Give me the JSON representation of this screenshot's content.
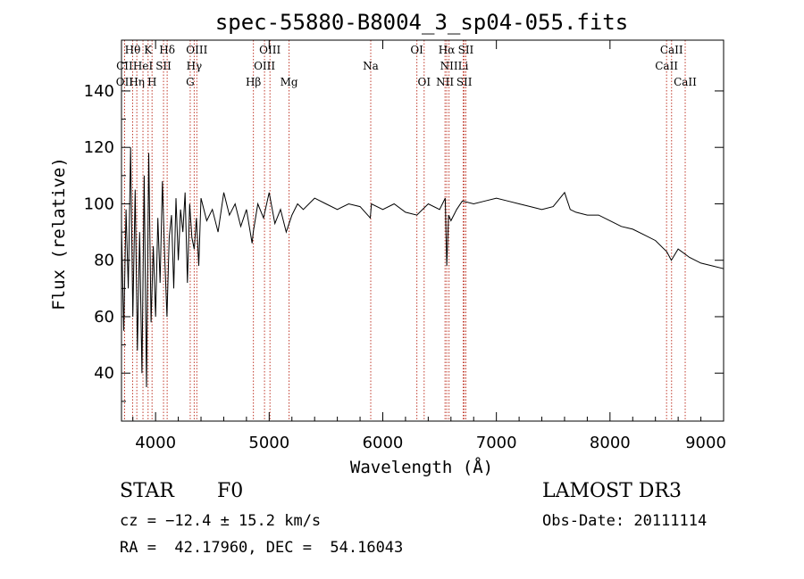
{
  "chart_data": {
    "type": "line",
    "title": "spec-55880-B8004_3_sp04-055.fits",
    "xlabel": "Wavelength (Å)",
    "ylabel": "Flux (relative)",
    "xlim": [
      3700,
      9000
    ],
    "ylim": [
      23,
      158
    ],
    "xticks": [
      4000,
      5000,
      6000,
      7000,
      8000,
      9000
    ],
    "yticks": [
      40,
      60,
      80,
      100,
      120,
      140
    ],
    "series": [
      {
        "name": "flux",
        "x": [
          3700,
          3720,
          3740,
          3760,
          3780,
          3800,
          3820,
          3840,
          3860,
          3880,
          3900,
          3920,
          3940,
          3960,
          3980,
          4000,
          4020,
          4040,
          4060,
          4080,
          4100,
          4120,
          4140,
          4160,
          4180,
          4200,
          4220,
          4240,
          4260,
          4280,
          4300,
          4320,
          4340,
          4360,
          4380,
          4400,
          4450,
          4500,
          4550,
          4600,
          4650,
          4700,
          4750,
          4800,
          4850,
          4860,
          4900,
          4950,
          5000,
          5050,
          5100,
          5150,
          5200,
          5250,
          5300,
          5400,
          5500,
          5600,
          5700,
          5800,
          5890,
          5900,
          6000,
          6100,
          6200,
          6300,
          6400,
          6500,
          6550,
          6563,
          6580,
          6600,
          6650,
          6700,
          6800,
          6900,
          7000,
          7100,
          7200,
          7300,
          7400,
          7500,
          7600,
          7650,
          7700,
          7800,
          7900,
          8000,
          8100,
          8200,
          8300,
          8400,
          8500,
          8540,
          8600,
          8700,
          8800,
          8900,
          9000
        ],
        "values": [
          92,
          55,
          98,
          70,
          120,
          60,
          105,
          48,
          90,
          40,
          110,
          35,
          118,
          58,
          85,
          60,
          95,
          72,
          108,
          82,
          60,
          88,
          96,
          70,
          102,
          80,
          98,
          90,
          104,
          72,
          100,
          88,
          84,
          95,
          78,
          102,
          94,
          98,
          90,
          104,
          96,
          100,
          92,
          98,
          86,
          90,
          100,
          95,
          104,
          93,
          98,
          90,
          96,
          100,
          98,
          102,
          100,
          98,
          100,
          99,
          95,
          100,
          98,
          100,
          97,
          96,
          100,
          98,
          102,
          78,
          96,
          94,
          98,
          101,
          100,
          101,
          102,
          101,
          100,
          99,
          98,
          99,
          104,
          98,
          97,
          96,
          96,
          94,
          92,
          91,
          89,
          87,
          83,
          80,
          84,
          81,
          79,
          78,
          77
        ]
      }
    ],
    "annotations": [
      {
        "label": "Hθ",
        "wavelength": 3798,
        "row": 1
      },
      {
        "label": "CII",
        "wavelength": 3727,
        "row": 2
      },
      {
        "label": "OII",
        "wavelength": 3727,
        "row": 3
      },
      {
        "label": "K",
        "wavelength": 3934,
        "row": 1
      },
      {
        "label": "HeI",
        "wavelength": 3889,
        "row": 2
      },
      {
        "label": "Hη",
        "wavelength": 3835,
        "row": 3
      },
      {
        "label": "Hδ",
        "wavelength": 4102,
        "row": 1
      },
      {
        "label": "SII",
        "wavelength": 4070,
        "row": 2
      },
      {
        "label": "H",
        "wavelength": 3969,
        "row": 3
      },
      {
        "label": "OIII",
        "wavelength": 4363,
        "row": 1
      },
      {
        "label": "Hγ",
        "wavelength": 4340,
        "row": 2
      },
      {
        "label": "G",
        "wavelength": 4305,
        "row": 3
      },
      {
        "label": "OIII",
        "wavelength": 5007,
        "row": 1
      },
      {
        "label": "OIII",
        "wavelength": 4959,
        "row": 2
      },
      {
        "label": "Hβ",
        "wavelength": 4861,
        "row": 3
      },
      {
        "label": "Mg",
        "wavelength": 5175,
        "row": 3
      },
      {
        "label": "Na",
        "wavelength": 5894,
        "row": 2
      },
      {
        "label": "OI",
        "wavelength": 6300,
        "row": 1
      },
      {
        "label": "OI",
        "wavelength": 6364,
        "row": 3
      },
      {
        "label": "Hα",
        "wavelength": 6563,
        "row": 1
      },
      {
        "label": "NII",
        "wavelength": 6583,
        "row": 2
      },
      {
        "label": "NII",
        "wavelength": 6548,
        "row": 3
      },
      {
        "label": "SII",
        "wavelength": 6731,
        "row": 1
      },
      {
        "label": "Li",
        "wavelength": 6708,
        "row": 2
      },
      {
        "label": "SII",
        "wavelength": 6717,
        "row": 3
      },
      {
        "label": "CaII",
        "wavelength": 8542,
        "row": 1
      },
      {
        "label": "CaII",
        "wavelength": 8498,
        "row": 2
      },
      {
        "label": "CaII",
        "wavelength": 8662,
        "row": 3
      }
    ]
  },
  "info": {
    "class": "STAR",
    "subclass": "F0",
    "survey": "LAMOST DR3",
    "redshift": "cz = −12.4 ± 15.2 km/s",
    "obs_date": "Obs-Date: 20111114",
    "coords": "RA =  42.17960, DEC =  54.16043"
  },
  "colors": {
    "line_marker": "#c0392b",
    "spectrum": "#000000"
  }
}
